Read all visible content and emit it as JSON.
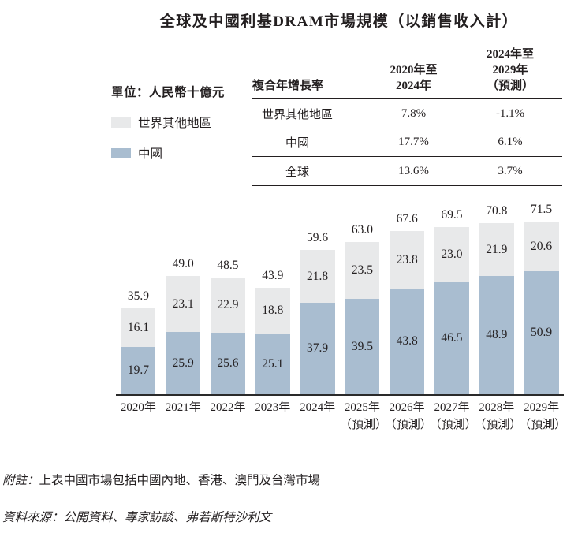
{
  "title": "全球及中國利基DRAM市場規模（以銷售收入計）",
  "unit_label": "單位：人民幣十億元",
  "legend": {
    "items": [
      {
        "name": "rest-of-world",
        "label": "世界其他地區",
        "color": "#e8e9ea"
      },
      {
        "name": "china",
        "label": "中國",
        "color": "#a9bdd0"
      }
    ]
  },
  "cagr_table": {
    "metric_header": "複合年增長率",
    "period1_header": "2020年至\n2024年",
    "period2_header": "2024年至\n2029年\n（預測）",
    "rows": [
      {
        "label": "世界其他地區",
        "p1": "7.8%",
        "p2": "-1.1%"
      },
      {
        "label": "中國",
        "p1": "17.7%",
        "p2": "6.1%"
      },
      {
        "label": "全球",
        "p1": "13.6%",
        "p2": "3.7%"
      }
    ]
  },
  "chart_data": {
    "type": "bar",
    "stacked": true,
    "title": "全球及中國利基DRAM市場規模（以銷售收入計）",
    "unit": "人民幣十億元",
    "legend_position": "left",
    "grid": false,
    "ylim": [
      0,
      80
    ],
    "categories": [
      "2020年",
      "2021年",
      "2022年",
      "2023年",
      "2024年",
      "2025年\n（預測）",
      "2026年\n（預測）",
      "2027年\n（預測）",
      "2028年\n（預測）",
      "2029年\n（預測）"
    ],
    "series": [
      {
        "name": "中國",
        "color": "#a9bdd0",
        "values": [
          19.7,
          25.9,
          25.6,
          25.1,
          37.9,
          39.5,
          43.8,
          46.5,
          48.9,
          50.9
        ]
      },
      {
        "name": "世界其他地區",
        "color": "#e8e9ea",
        "values": [
          16.1,
          23.1,
          22.9,
          18.8,
          21.8,
          23.5,
          23.8,
          23.0,
          21.9,
          20.6
        ]
      }
    ],
    "series_value_labels": [
      [
        "19.7",
        "25.9",
        "25.6",
        "25.1",
        "37.9",
        "39.5",
        "43.8",
        "46.5",
        "48.9",
        "50.9"
      ],
      [
        "16.1",
        "23.1",
        "22.9",
        "18.8",
        "21.8",
        "23.5",
        "23.8",
        "23.0",
        "21.9",
        "20.6"
      ]
    ],
    "totals": [
      "35.9",
      "49.0",
      "48.5",
      "43.9",
      "59.6",
      "63.0",
      "67.6",
      "69.5",
      "70.8",
      "71.5"
    ]
  },
  "notes": {
    "note_label": "附註：",
    "note_text": "上表中國市場包括中國內地、香港、澳門及台灣市場",
    "source_text": "資料來源：公開資料、專家訪談、弗若斯特沙利文"
  },
  "colors": {
    "text": "#231f20",
    "axis": "#2a2a2a",
    "rest_of_world": "#e8e9ea",
    "china": "#a9bdd0"
  }
}
